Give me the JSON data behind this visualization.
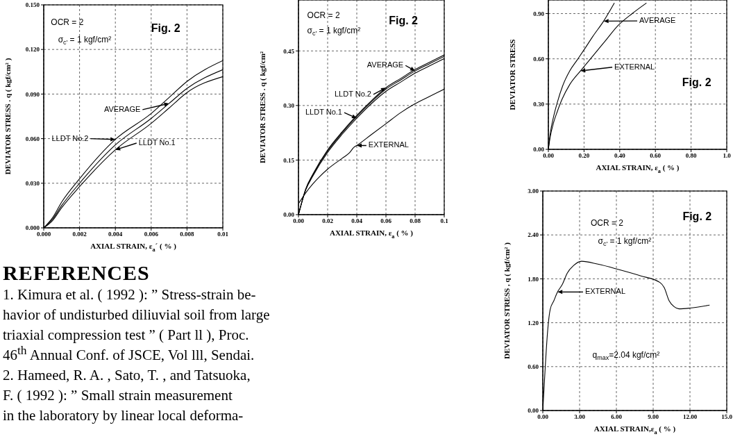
{
  "chart_data": [
    {
      "type": "line",
      "xlabel": "AXIAL STRAIN, ε$_{a}$´ ( % )",
      "ylabel": "DEVIATOR STRESS . q ( kgf/cm² )",
      "annotations": [
        "OCR = 2",
        "σ$_{c'}$ = 1 kgf/cm²",
        "Fig. 2"
      ],
      "grid": true,
      "legend": "center left",
      "x": [
        0,
        0.0005,
        0.001,
        0.002,
        0.004,
        0.006,
        0.007,
        0.008,
        0.01
      ],
      "series": [
        {
          "name": "LLDT No.1",
          "color": "#000000",
          "values": [
            0,
            0.005,
            0.0135,
            0.0277,
            0.0525,
            0.0703,
            0.0806,
            0.091,
            0.1017
          ]
        },
        {
          "name": "LLDT No.2",
          "color": "#000000",
          "values": [
            0,
            0.007,
            0.0173,
            0.033,
            0.0595,
            0.0769,
            0.0877,
            0.0985,
            0.1125
          ]
        },
        {
          "name": "AVERAGE",
          "color": "#000000",
          "values": [
            0,
            0.006,
            0.015,
            0.03,
            0.0558,
            0.0736,
            0.0837,
            0.0938,
            0.1064
          ]
        }
      ],
      "xlim": [
        0,
        0.01
      ],
      "ylim": [
        0,
        0.15
      ],
      "xticks": [
        {
          "value": 0,
          "label": "0.000"
        },
        0.002,
        0.004,
        0.006,
        0.008,
        0.01
      ],
      "yticks": [
        {
          "value": 0,
          "label": "0.000"
        },
        {
          "value": 0.03,
          "label": "0.030"
        },
        {
          "value": 0.06,
          "label": "0.060"
        },
        {
          "value": 0.09,
          "label": "0.090"
        },
        {
          "value": 0.12,
          "label": "0.120"
        },
        {
          "value": 0.15,
          "label": "0.150"
        }
      ]
    },
    {
      "type": "line",
      "xlabel": "AXIAL STRAIN, ε$_{a}$ ( % )",
      "ylabel": "DEVIATOR STRESS . q ( kgf/cm²",
      "annotations": [
        "OCR = 2",
        "σ$_{c'}$ = 1 kgf/cm²",
        "Fig. 2"
      ],
      "grid": true,
      "legend": "center left",
      "x": [
        0,
        0.005,
        0.01,
        0.02,
        0.03,
        0.04,
        0.05,
        0.06,
        0.07,
        0.08,
        0.09,
        0.1
      ],
      "series": [
        {
          "name": "LLDT No.1",
          "color": "#000000",
          "values": [
            0,
            0.068,
            0.107,
            0.171,
            0.221,
            0.265,
            0.305,
            0.339,
            0.364,
            0.389,
            0.409,
            0.429
          ]
        },
        {
          "name": "LLDT No.2",
          "color": "#000000",
          "values": [
            0,
            0.071,
            0.112,
            0.178,
            0.228,
            0.273,
            0.313,
            0.349,
            0.374,
            0.399,
            0.419,
            0.439
          ]
        },
        {
          "name": "AVERAGE",
          "color": "#000000",
          "values": [
            0,
            0.07,
            0.11,
            0.175,
            0.225,
            0.27,
            0.31,
            0.345,
            0.37,
            0.395,
            0.415,
            0.435
          ]
        },
        {
          "name": "EXTERNAL",
          "color": "#000000",
          "x": [
            0,
            0.005,
            0.01,
            0.02,
            0.03,
            0.035,
            0.038,
            0.04,
            0.05,
            0.06,
            0.07,
            0.08,
            0.09,
            0.1
          ],
          "values": [
            0.03,
            0.06,
            0.085,
            0.125,
            0.155,
            0.17,
            0.185,
            0.19,
            0.22,
            0.25,
            0.28,
            0.305,
            0.325,
            0.345
          ]
        }
      ],
      "xlim": [
        0,
        0.1
      ],
      "ylim": [
        0,
        0.59
      ],
      "xticks": [
        {
          "value": 0,
          "label": "0.00"
        },
        0.02,
        0.04,
        0.06,
        0.08,
        0.1
      ],
      "yticks": [
        {
          "value": 0,
          "label": "0.00"
        },
        0.15,
        {
          "value": 0.3,
          "label": "0.30"
        },
        0.45
      ]
    },
    {
      "type": "line",
      "xlabel": "AXIAL STRAIN, ε$_{a}$ ( % )",
      "ylabel": "DEVIATOR STRESS",
      "annotations": [
        "Fig. 2"
      ],
      "grid": true,
      "legend": "top center",
      "series": [
        {
          "name": "AVERAGE",
          "color": "#000000",
          "x": [
            0,
            0.01,
            0.03,
            0.05,
            0.08,
            0.12,
            0.16,
            0.2,
            0.25,
            0.31,
            0.37
          ],
          "values": [
            0,
            0.1,
            0.22,
            0.31,
            0.42,
            0.52,
            0.59,
            0.66,
            0.75,
            0.85,
            0.97
          ]
        },
        {
          "name": "EXTERNAL",
          "color": "#000000",
          "x": [
            0,
            0.01,
            0.03,
            0.05,
            0.076,
            0.12,
            0.18,
            0.25,
            0.32,
            0.39,
            0.47,
            0.55
          ],
          "values": [
            0,
            0.08,
            0.18,
            0.25,
            0.33,
            0.43,
            0.52,
            0.62,
            0.72,
            0.82,
            0.9,
            0.97
          ]
        }
      ],
      "xlim": [
        0,
        1
      ],
      "ylim": [
        0,
        0.99
      ],
      "xticks": [
        {
          "value": 0,
          "label": "0.00"
        },
        {
          "value": 0.2,
          "label": "0.20"
        },
        {
          "value": 0.4,
          "label": "0.40"
        },
        {
          "value": 0.6,
          "label": "0.60"
        },
        {
          "value": 0.8,
          "label": "0.80"
        },
        {
          "value": 1,
          "label": "1.0"
        }
      ],
      "yticks": [
        {
          "value": 0,
          "label": "0.00"
        },
        {
          "value": 0.3,
          "label": "0.30"
        },
        {
          "value": 0.6,
          "label": "0.60"
        },
        {
          "value": 0.9,
          "label": "0.90"
        }
      ]
    },
    {
      "type": "other",
      "title": "REFERENCES",
      "annotations": [
        "1. Kimura et al. ( 1992 ): ” Stress-strain be-",
        "havior of undisturbed diliuvial soil from large",
        "triaxial compression test ” ( Part ll ), Proc.",
        "46$^{th}$ Annual Conf. of JSCE, Vol lll, Sendai.",
        "2. Hameed, R. A. , Sato, T. , and Tatsuoka,",
        "F. ( 1992 ): ” Small strain measurement",
        "in the laboratory by linear local deforma-"
      ]
    },
    {
      "type": "line",
      "xlabel": "AXIAL STRAIN,ε$_{a}$ ( % )",
      "ylabel": "DEVIATOR STRESS , q ( kgf/cm² )",
      "annotations": [
        "Fig. 2",
        "OCR = 2",
        "σ$_{c'}$ = 1 kgf/cm²",
        "q$_{max}$=2.04 kgf/cm²"
      ],
      "grid": true,
      "legend": "center left",
      "x": [
        0,
        0.2,
        0.4,
        0.6,
        0.9,
        1.2,
        1.58,
        2,
        2.5,
        3.16,
        4.5,
        6.13,
        8,
        9.55,
        9.9,
        10.3,
        10.7,
        11.1,
        12,
        13.6
      ],
      "series": [
        {
          "name": "EXTERNAL",
          "color": "#000000",
          "values": [
            0,
            0.6,
            1.1,
            1.38,
            1.5,
            1.62,
            1.72,
            1.88,
            1.98,
            2.04,
            2,
            1.93,
            1.84,
            1.75,
            1.68,
            1.5,
            1.42,
            1.39,
            1.4,
            1.44
          ]
        }
      ],
      "xlim": [
        0,
        15
      ],
      "ylim": [
        0,
        3
      ],
      "xticks": [
        {
          "value": 0,
          "label": "0.00"
        },
        {
          "value": 3,
          "label": "3.00"
        },
        {
          "value": 6,
          "label": "6.00"
        },
        {
          "value": 9,
          "label": "9.00"
        },
        {
          "value": 12,
          "label": "12.00"
        },
        {
          "value": 15,
          "label": "15.0"
        }
      ],
      "yticks": [
        {
          "value": 0,
          "label": "0.00"
        },
        {
          "value": 0.6,
          "label": "0.60"
        },
        {
          "value": 1.2,
          "label": "1.20"
        },
        {
          "value": 1.8,
          "label": "1.80"
        },
        {
          "value": 2.4,
          "label": "2.40"
        },
        {
          "value": 3,
          "label": "3.00"
        }
      ]
    }
  ]
}
